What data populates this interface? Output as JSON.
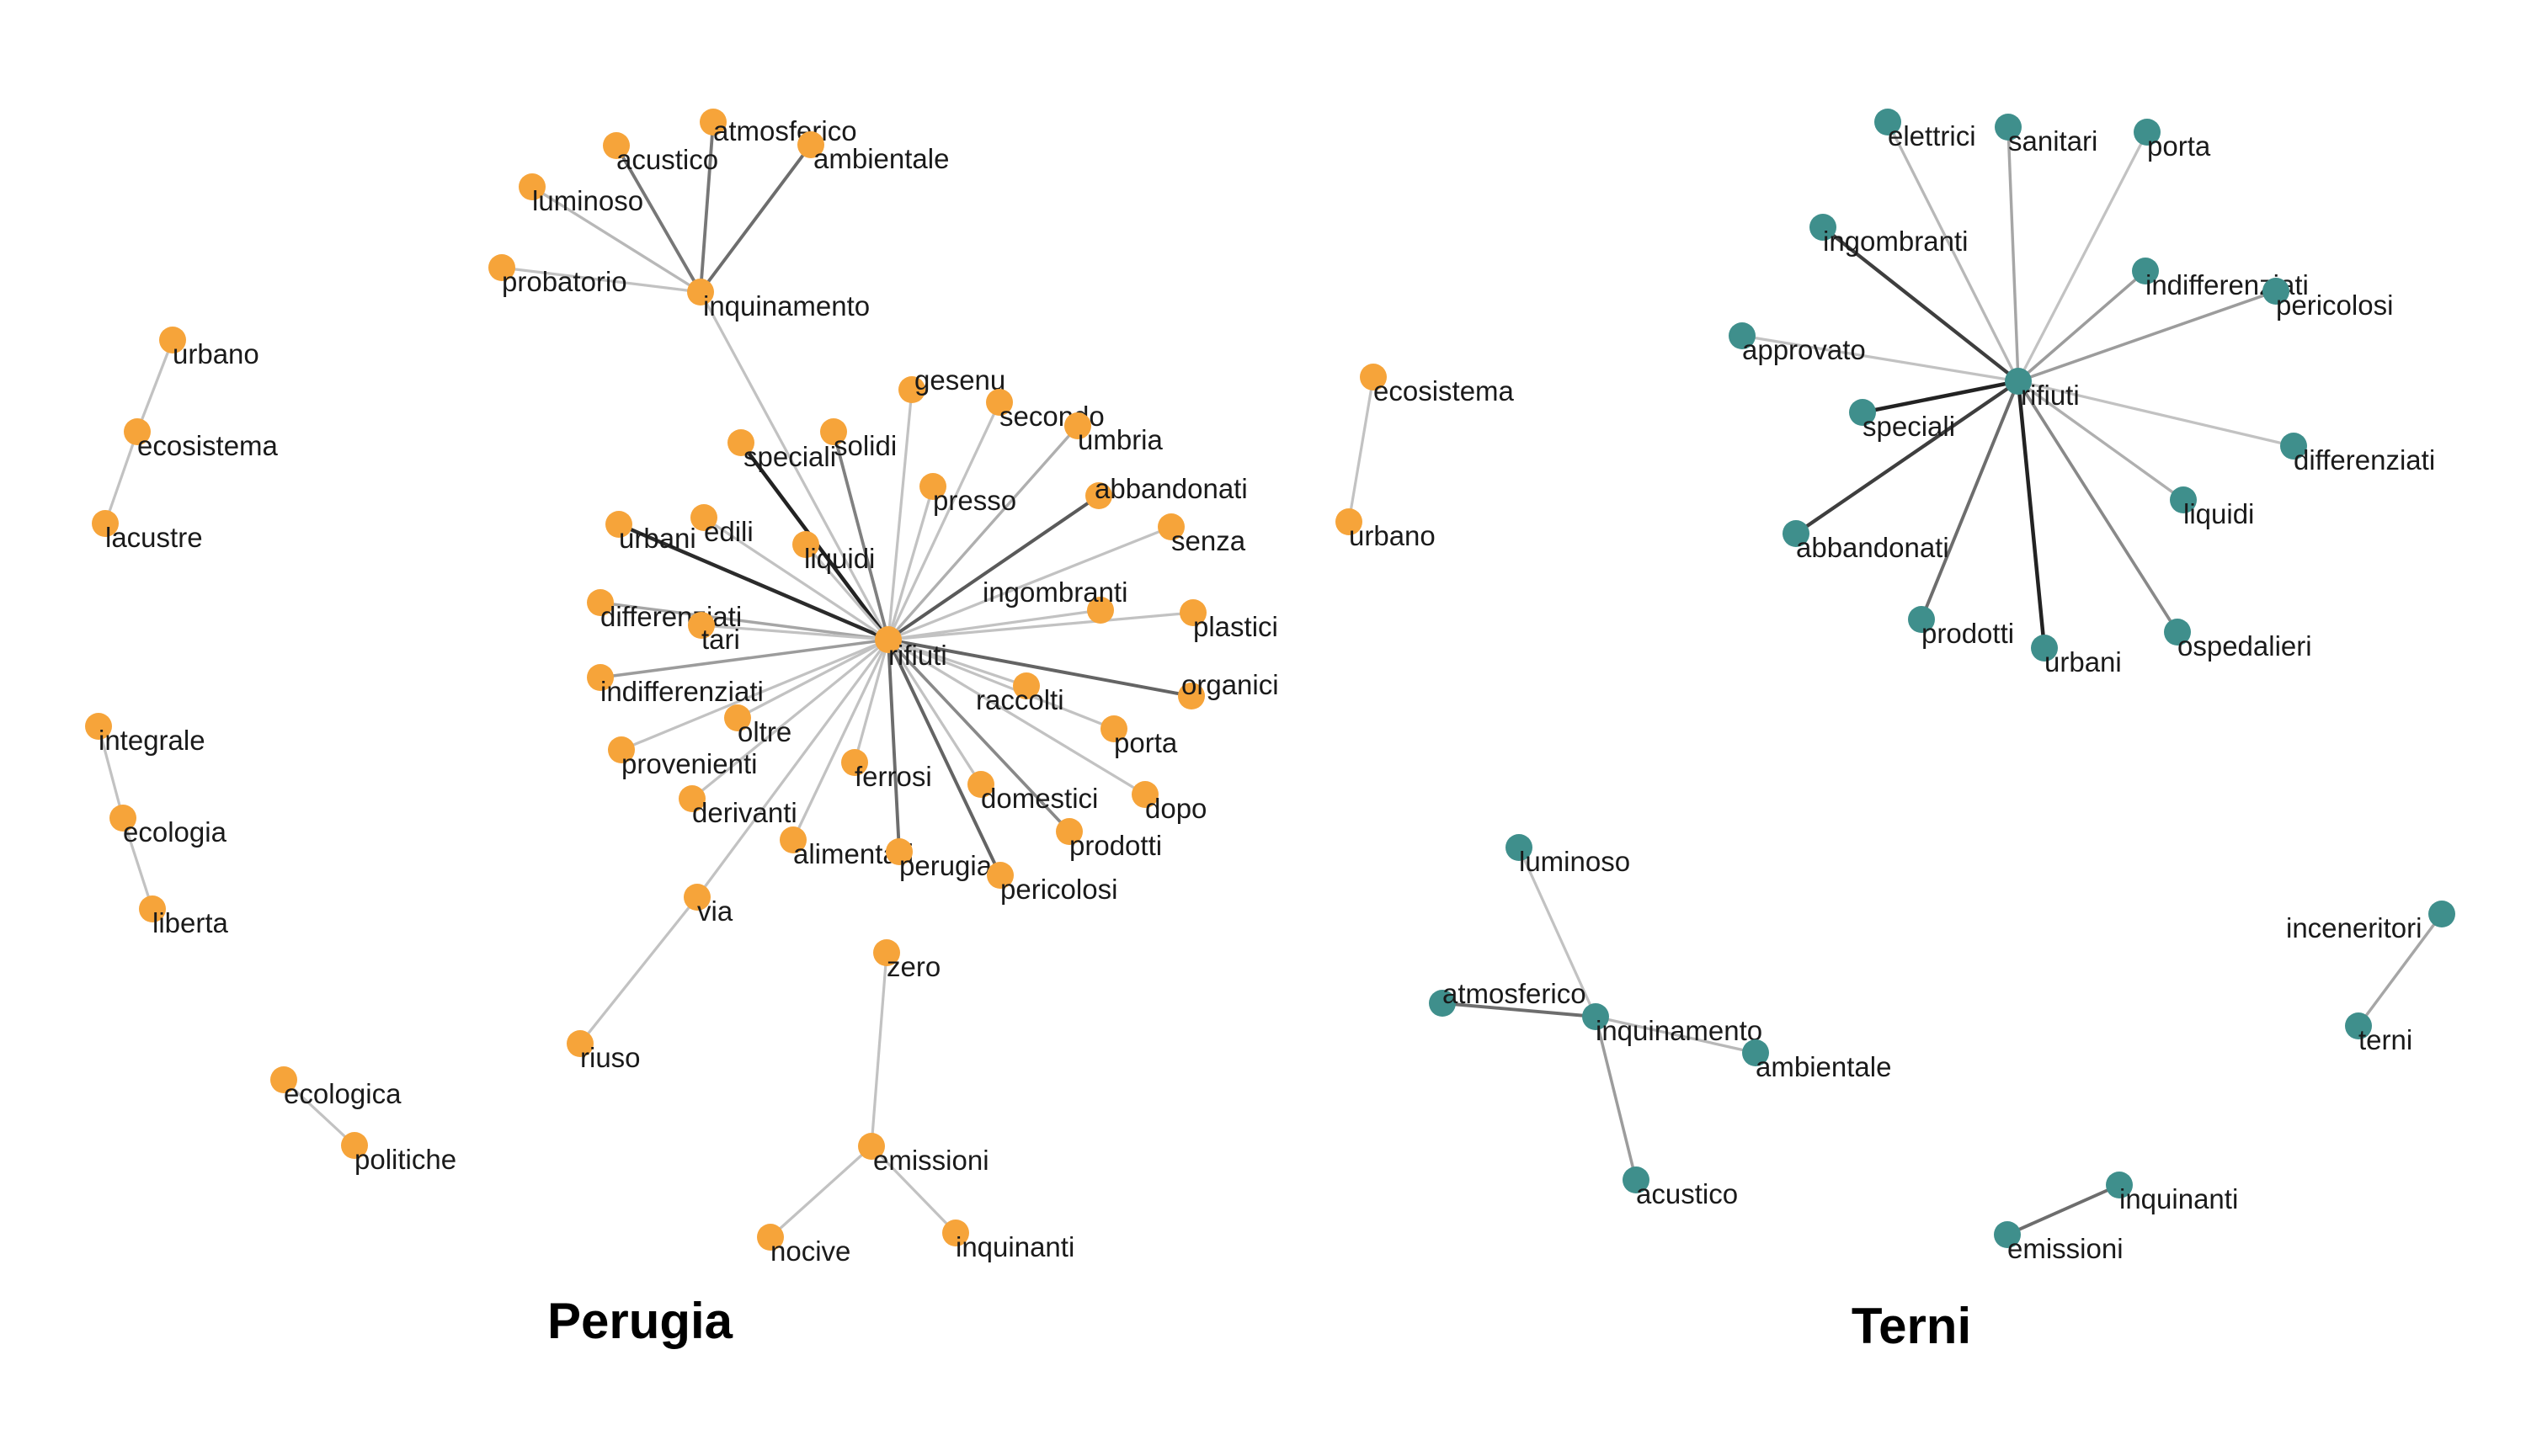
{
  "colors": {
    "perugia": "#F6A43A",
    "terni": "#3F8F8C"
  },
  "panels": [
    {
      "id": "perugia",
      "title": "Perugia",
      "color_key": "perugia",
      "nodes": [
        {
          "id": "p_rifiuti",
          "label": "rifiuti"
        },
        {
          "id": "p_inquinamento",
          "label": "inquinamento"
        },
        {
          "id": "p_acustico",
          "label": "acustico"
        },
        {
          "id": "p_atmosferico",
          "label": "atmosferico"
        },
        {
          "id": "p_ambientale",
          "label": "ambientale"
        },
        {
          "id": "p_luminoso",
          "label": "luminoso"
        },
        {
          "id": "p_probatorio",
          "label": "probatorio"
        },
        {
          "id": "p_gesenu",
          "label": "gesenu"
        },
        {
          "id": "p_secondo",
          "label": "secondo"
        },
        {
          "id": "p_umbria",
          "label": "umbria"
        },
        {
          "id": "p_speciali",
          "label": "speciali"
        },
        {
          "id": "p_solidi",
          "label": "solidi"
        },
        {
          "id": "p_presso",
          "label": "presso"
        },
        {
          "id": "p_abbandonati",
          "label": "abbandonati"
        },
        {
          "id": "p_urbani",
          "label": "urbani"
        },
        {
          "id": "p_edili",
          "label": "edili"
        },
        {
          "id": "p_liquidi",
          "label": "liquidi"
        },
        {
          "id": "p_senza",
          "label": "senza"
        },
        {
          "id": "p_ingombranti",
          "label": "ingombranti"
        },
        {
          "id": "p_differenziati",
          "label": "differenziati"
        },
        {
          "id": "p_tari",
          "label": "tari"
        },
        {
          "id": "p_plastici",
          "label": "plastici"
        },
        {
          "id": "p_indifferenziati",
          "label": "indifferenziati"
        },
        {
          "id": "p_organici",
          "label": "organici"
        },
        {
          "id": "p_raccolti",
          "label": "raccolti"
        },
        {
          "id": "p_oltre",
          "label": "oltre"
        },
        {
          "id": "p_porta",
          "label": "porta"
        },
        {
          "id": "p_provenienti",
          "label": "provenienti"
        },
        {
          "id": "p_ferrosi",
          "label": "ferrosi"
        },
        {
          "id": "p_domestici",
          "label": "domestici"
        },
        {
          "id": "p_dopo",
          "label": "dopo"
        },
        {
          "id": "p_derivanti",
          "label": "derivanti"
        },
        {
          "id": "p_prodotti",
          "label": "prodotti"
        },
        {
          "id": "p_alimentari",
          "label": "alimentari"
        },
        {
          "id": "p_perugia",
          "label": "perugia"
        },
        {
          "id": "p_pericolosi",
          "label": "pericolosi"
        },
        {
          "id": "p_via",
          "label": "via"
        },
        {
          "id": "p_zero",
          "label": "zero"
        },
        {
          "id": "p_riuso",
          "label": "riuso"
        },
        {
          "id": "p_emissioni",
          "label": "emissioni"
        },
        {
          "id": "p_nocive",
          "label": "nocive"
        },
        {
          "id": "p_inquinanti",
          "label": "inquinanti"
        },
        {
          "id": "p_urbano",
          "label": "urbano"
        },
        {
          "id": "p_ecosistema",
          "label": "ecosistema"
        },
        {
          "id": "p_lacustre",
          "label": "lacustre"
        },
        {
          "id": "p_integrale",
          "label": "integrale"
        },
        {
          "id": "p_ecologia",
          "label": "ecologia"
        },
        {
          "id": "p_liberta",
          "label": "liberta"
        },
        {
          "id": "p_ecologica",
          "label": "ecologica"
        },
        {
          "id": "p_politiche",
          "label": "politiche"
        },
        {
          "id": "p_ecosistema2",
          "label": "ecosistema"
        },
        {
          "id": "p_urbano2",
          "label": "urbano"
        }
      ],
      "edges": [
        {
          "source": "p_inquinamento",
          "target": "p_acustico",
          "weight": 0.55
        },
        {
          "source": "p_inquinamento",
          "target": "p_atmosferico",
          "weight": 0.55
        },
        {
          "source": "p_inquinamento",
          "target": "p_ambientale",
          "weight": 0.6
        },
        {
          "source": "p_inquinamento",
          "target": "p_luminoso",
          "weight": 0.2
        },
        {
          "source": "p_inquinamento",
          "target": "p_probatorio",
          "weight": 0.15
        },
        {
          "source": "p_inquinamento",
          "target": "p_rifiuti",
          "weight": 0.15
        },
        {
          "source": "p_rifiuti",
          "target": "p_speciali",
          "weight": 1.0
        },
        {
          "source": "p_rifiuti",
          "target": "p_urbani",
          "weight": 0.95
        },
        {
          "source": "p_rifiuti",
          "target": "p_abbandonati",
          "weight": 0.7
        },
        {
          "source": "p_rifiuti",
          "target": "p_organici",
          "weight": 0.65
        },
        {
          "source": "p_rifiuti",
          "target": "p_pericolosi",
          "weight": 0.65
        },
        {
          "source": "p_rifiuti",
          "target": "p_perugia",
          "weight": 0.6
        },
        {
          "source": "p_rifiuti",
          "target": "p_solidi",
          "weight": 0.5
        },
        {
          "source": "p_rifiuti",
          "target": "p_prodotti",
          "weight": 0.45
        },
        {
          "source": "p_rifiuti",
          "target": "p_indifferenziati",
          "weight": 0.35
        },
        {
          "source": "p_rifiuti",
          "target": "p_differenziati",
          "weight": 0.3
        },
        {
          "source": "p_rifiuti",
          "target": "p_umbria",
          "weight": 0.25
        },
        {
          "source": "p_rifiuti",
          "target": "p_gesenu",
          "weight": 0.15
        },
        {
          "source": "p_rifiuti",
          "target": "p_secondo",
          "weight": 0.15
        },
        {
          "source": "p_rifiuti",
          "target": "p_presso",
          "weight": 0.15
        },
        {
          "source": "p_rifiuti",
          "target": "p_edili",
          "weight": 0.15
        },
        {
          "source": "p_rifiuti",
          "target": "p_liquidi",
          "weight": 0.15
        },
        {
          "source": "p_rifiuti",
          "target": "p_senza",
          "weight": 0.15
        },
        {
          "source": "p_rifiuti",
          "target": "p_ingombranti",
          "weight": 0.15
        },
        {
          "source": "p_rifiuti",
          "target": "p_tari",
          "weight": 0.15
        },
        {
          "source": "p_rifiuti",
          "target": "p_plastici",
          "weight": 0.15
        },
        {
          "source": "p_rifiuti",
          "target": "p_raccolti",
          "weight": 0.15
        },
        {
          "source": "p_rifiuti",
          "target": "p_oltre",
          "weight": 0.15
        },
        {
          "source": "p_rifiuti",
          "target": "p_porta",
          "weight": 0.15
        },
        {
          "source": "p_rifiuti",
          "target": "p_provenienti",
          "weight": 0.15
        },
        {
          "source": "p_rifiuti",
          "target": "p_ferrosi",
          "weight": 0.15
        },
        {
          "source": "p_rifiuti",
          "target": "p_domestici",
          "weight": 0.15
        },
        {
          "source": "p_rifiuti",
          "target": "p_dopo",
          "weight": 0.15
        },
        {
          "source": "p_rifiuti",
          "target": "p_derivanti",
          "weight": 0.15
        },
        {
          "source": "p_rifiuti",
          "target": "p_alimentari",
          "weight": 0.15
        },
        {
          "source": "p_rifiuti",
          "target": "p_via",
          "weight": 0.15
        },
        {
          "source": "p_via",
          "target": "p_riuso",
          "weight": 0.15
        },
        {
          "source": "p_zero",
          "target": "p_emissioni",
          "weight": 0.15
        },
        {
          "source": "p_emissioni",
          "target": "p_nocive",
          "weight": 0.15
        },
        {
          "source": "p_emissioni",
          "target": "p_inquinanti",
          "weight": 0.15
        },
        {
          "source": "p_urbano",
          "target": "p_ecosistema",
          "weight": 0.15
        },
        {
          "source": "p_ecosistema",
          "target": "p_lacustre",
          "weight": 0.15
        },
        {
          "source": "p_integrale",
          "target": "p_ecologia",
          "weight": 0.15
        },
        {
          "source": "p_ecologia",
          "target": "p_liberta",
          "weight": 0.15
        },
        {
          "source": "p_ecologica",
          "target": "p_politiche",
          "weight": 0.15
        },
        {
          "source": "p_ecosistema2",
          "target": "p_urbano2",
          "weight": 0.15
        }
      ]
    },
    {
      "id": "terni",
      "title": "Terni",
      "color_key": "terni",
      "nodes": [
        {
          "id": "t_rifiuti",
          "label": "rifiuti"
        },
        {
          "id": "t_elettrici",
          "label": "elettrici"
        },
        {
          "id": "t_sanitari",
          "label": "sanitari"
        },
        {
          "id": "t_porta",
          "label": "porta"
        },
        {
          "id": "t_ingombranti",
          "label": "ingombranti"
        },
        {
          "id": "t_indifferenziati",
          "label": "indifferenziati"
        },
        {
          "id": "t_pericolosi",
          "label": "pericolosi"
        },
        {
          "id": "t_approvato",
          "label": "approvato"
        },
        {
          "id": "t_speciali",
          "label": "speciali"
        },
        {
          "id": "t_differenziati",
          "label": "differenziati"
        },
        {
          "id": "t_liquidi",
          "label": "liquidi"
        },
        {
          "id": "t_abbandonati",
          "label": "abbandonati"
        },
        {
          "id": "t_prodotti",
          "label": "prodotti"
        },
        {
          "id": "t_urbani",
          "label": "urbani"
        },
        {
          "id": "t_ospedalieri",
          "label": "ospedalieri"
        },
        {
          "id": "t_luminoso",
          "label": "luminoso"
        },
        {
          "id": "t_atmosferico",
          "label": "atmosferico"
        },
        {
          "id": "t_inquinamento",
          "label": "inquinamento"
        },
        {
          "id": "t_ambientale",
          "label": "ambientale"
        },
        {
          "id": "t_acustico",
          "label": "acustico"
        },
        {
          "id": "t_inceneritori",
          "label": "inceneritori"
        },
        {
          "id": "t_terni",
          "label": "terni"
        },
        {
          "id": "t_inquinanti",
          "label": "inquinanti"
        },
        {
          "id": "t_emissioni",
          "label": "emissioni"
        }
      ],
      "edges": [
        {
          "source": "t_rifiuti",
          "target": "t_speciali",
          "weight": 1.0
        },
        {
          "source": "t_rifiuti",
          "target": "t_urbani",
          "weight": 1.0
        },
        {
          "source": "t_rifiuti",
          "target": "t_abbandonati",
          "weight": 0.85
        },
        {
          "source": "t_rifiuti",
          "target": "t_ingombranti",
          "weight": 0.85
        },
        {
          "source": "t_rifiuti",
          "target": "t_prodotti",
          "weight": 0.6
        },
        {
          "source": "t_rifiuti",
          "target": "t_ospedalieri",
          "weight": 0.45
        },
        {
          "source": "t_rifiuti",
          "target": "t_pericolosi",
          "weight": 0.35
        },
        {
          "source": "t_rifiuti",
          "target": "t_indifferenziati",
          "weight": 0.35
        },
        {
          "source": "t_rifiuti",
          "target": "t_sanitari",
          "weight": 0.3
        },
        {
          "source": "t_rifiuti",
          "target": "t_liquidi",
          "weight": 0.25
        },
        {
          "source": "t_rifiuti",
          "target": "t_elettrici",
          "weight": 0.2
        },
        {
          "source": "t_rifiuti",
          "target": "t_porta",
          "weight": 0.15
        },
        {
          "source": "t_rifiuti",
          "target": "t_approvato",
          "weight": 0.15
        },
        {
          "source": "t_rifiuti",
          "target": "t_differenziati",
          "weight": 0.15
        },
        {
          "source": "t_inquinamento",
          "target": "t_atmosferico",
          "weight": 0.6
        },
        {
          "source": "t_inquinamento",
          "target": "t_acustico",
          "weight": 0.35
        },
        {
          "source": "t_inquinamento",
          "target": "t_ambientale",
          "weight": 0.2
        },
        {
          "source": "t_inquinamento",
          "target": "t_luminoso",
          "weight": 0.15
        },
        {
          "source": "t_inceneritori",
          "target": "t_terni",
          "weight": 0.3
        },
        {
          "source": "t_inquinanti",
          "target": "t_emissioni",
          "weight": 0.6
        }
      ]
    }
  ]
}
